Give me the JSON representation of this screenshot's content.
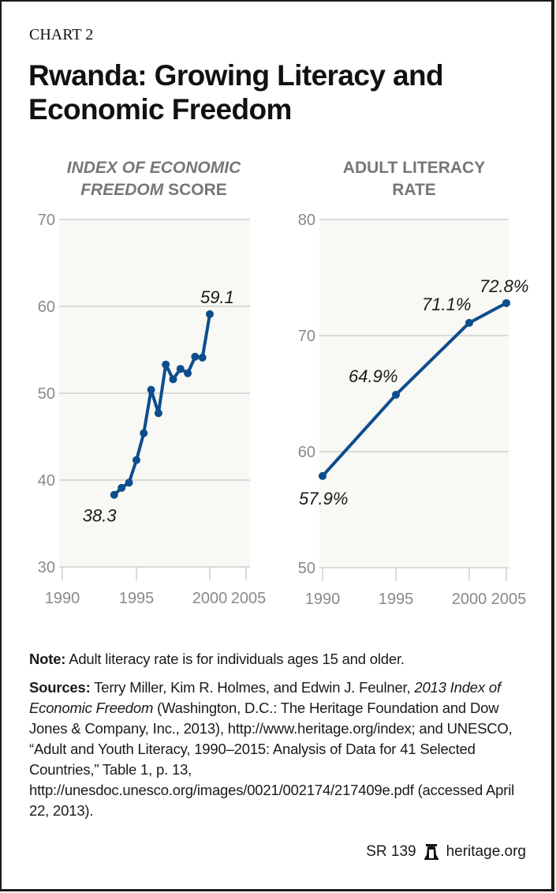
{
  "header": {
    "kicker": "CHART 2",
    "title": "Rwanda: Growing Literacy and Economic Freedom"
  },
  "chart_data": [
    {
      "type": "line",
      "title_italic": "INDEX OF ECONOMIC FREEDOM",
      "title_rest": " SCORE",
      "title": "INDEX OF ECONOMIC FREEDOM SCORE",
      "xlabel": "",
      "ylabel": "",
      "ylim": [
        30,
        70
      ],
      "yticks": [
        30,
        40,
        50,
        60,
        70
      ],
      "xticks": [
        1990,
        1995,
        2000,
        2005
      ],
      "grid": true,
      "series": [
        {
          "name": "Index of Economic Freedom Score",
          "color": "#0d4d8c",
          "x": [
            1993.5,
            1994.0,
            1994.5,
            1995.0,
            1995.5,
            1996.0,
            1996.5,
            1997.0,
            1997.5,
            1998.0,
            1998.5,
            1999.0,
            1999.5,
            2000.0
          ],
          "values": [
            38.3,
            39.1,
            39.7,
            42.3,
            45.4,
            50.4,
            47.7,
            53.3,
            51.6,
            52.8,
            52.3,
            54.2,
            54.1,
            59.1
          ]
        }
      ],
      "annotations": [
        {
          "text": "38.3",
          "x": 1993.5,
          "y": 38.3,
          "position": "below-left"
        },
        {
          "text": "59.1",
          "x": 2000.0,
          "y": 59.1,
          "position": "above"
        }
      ]
    },
    {
      "type": "line",
      "title": "ADULT LITERACY RATE",
      "title_line1": "ADULT LITERACY",
      "title_line2": "RATE",
      "xlabel": "",
      "ylabel": "",
      "ylim": [
        50,
        80
      ],
      "yticks": [
        50,
        60,
        70,
        80
      ],
      "xticks": [
        1990,
        1995,
        2000,
        2005
      ],
      "grid": true,
      "series": [
        {
          "name": "Adult Literacy Rate",
          "color": "#0d4d8c",
          "x": [
            1990,
            1995,
            2000,
            2005
          ],
          "values": [
            57.9,
            64.9,
            71.1,
            72.8
          ]
        }
      ],
      "annotations": [
        {
          "text": "57.9%",
          "x": 1990,
          "y": 57.9,
          "position": "below"
        },
        {
          "text": "64.9%",
          "x": 1995,
          "y": 64.9,
          "position": "above-left"
        },
        {
          "text": "71.1%",
          "x": 2000,
          "y": 71.1,
          "position": "above-left"
        },
        {
          "text": "72.8%",
          "x": 2005,
          "y": 72.8,
          "position": "above"
        }
      ]
    }
  ],
  "notes": {
    "note_label": "Note:",
    "note_text": " Adult literacy rate is for individuals ages 15 and older.",
    "sources_label": "Sources:",
    "sources_text_1": " Terry Miller, Kim R. Holmes, and Edwin J. Feulner, ",
    "sources_italic": "2013 Index of Economic Freedom",
    "sources_text_2": " (Washington, D.C.: The Heritage Foundation and Dow Jones & Company, Inc., 2013), http://www.heritage.org/index; and UNESCO, “Adult and Youth Literacy, 1990–2015: Analysis of Data for 41 Selected Countries,” Table 1, p. 13, http://unesdoc.unesco.org/images/0021/002174/217409e.pdf (accessed April 22, 2013)."
  },
  "footer": {
    "report_id": "SR 139",
    "logo_icon": "liberty-bell-icon",
    "site": "heritage.org"
  }
}
